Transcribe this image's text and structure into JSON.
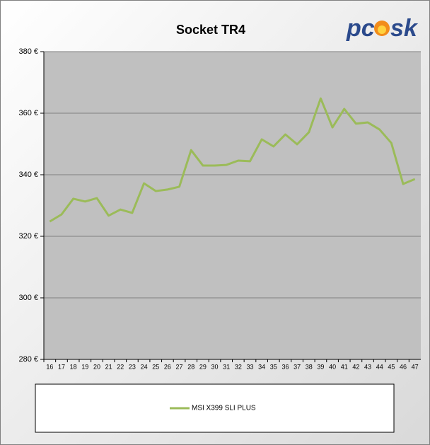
{
  "chart_data": {
    "type": "line",
    "title": "Socket TR4",
    "logo": [
      "pc",
      "sk"
    ],
    "categories": [
      "16",
      "17",
      "18",
      "19",
      "20",
      "21",
      "22",
      "23",
      "24",
      "25",
      "26",
      "27",
      "28",
      "29",
      "30",
      "31",
      "32",
      "33",
      "34",
      "35",
      "36",
      "37",
      "38",
      "39",
      "40",
      "41",
      "42",
      "43",
      "44",
      "45",
      "46",
      "47"
    ],
    "series": [
      {
        "name": "MSI X399 SLI PLUS",
        "color": "#9bbb59",
        "values": [
          324.8,
          327.1,
          332.2,
          331.3,
          332.4,
          326.7,
          328.7,
          327.6,
          337.2,
          334.7,
          335.2,
          336.1,
          348.0,
          343.0,
          343.0,
          343.2,
          344.6,
          344.4,
          351.5,
          349.2,
          353.1,
          349.9,
          353.8,
          364.8,
          355.4,
          361.4,
          356.6,
          357.0,
          354.7,
          350.3,
          337.0,
          338.6
        ]
      }
    ],
    "ylim": [
      280,
      380
    ],
    "yticks": [
      {
        "value": 280,
        "label": "280 €"
      },
      {
        "value": 300,
        "label": "300 €"
      },
      {
        "value": 320,
        "label": "320 €"
      },
      {
        "value": 340,
        "label": "340 €"
      },
      {
        "value": 360,
        "label": "360 €"
      },
      {
        "value": 380,
        "label": "380 €"
      }
    ],
    "grid": true,
    "legend": "bottom"
  }
}
